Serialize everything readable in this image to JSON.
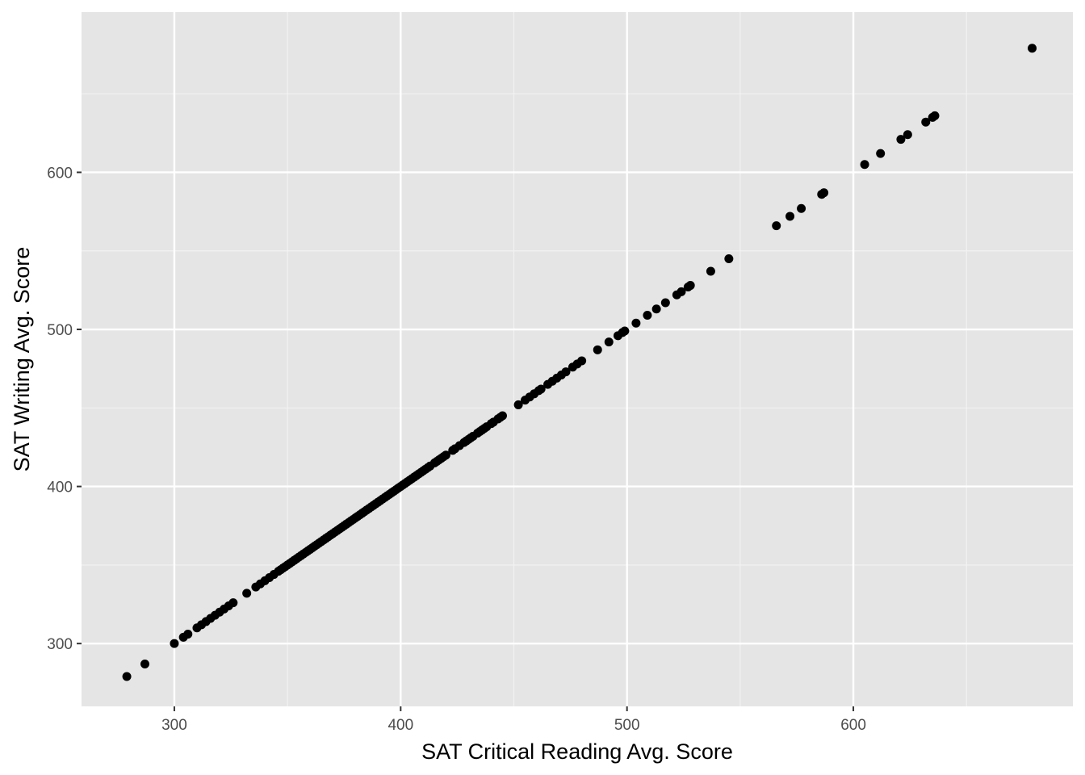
{
  "chart_data": {
    "type": "scatter",
    "title": "",
    "xlabel": "SAT Critical Reading Avg. Score",
    "ylabel": "SAT Writing Avg. Score",
    "xlim": [
      259,
      697
    ],
    "ylim": [
      260,
      702
    ],
    "x_ticks": [
      "300",
      "400",
      "500",
      "600"
    ],
    "y_ticks": [
      "300",
      "400",
      "500",
      "600"
    ],
    "grid": true,
    "legend": "none",
    "colors": {
      "panel_background": "#e5e5e5",
      "grid_major": "#ffffff",
      "grid_minor": "#f2f2f2",
      "point": "#000000",
      "tick_mark": "#333333"
    },
    "series": [
      {
        "points": [
          [
            279,
            279
          ],
          [
            287,
            287
          ],
          [
            300,
            300
          ],
          [
            304,
            304
          ],
          [
            306,
            306
          ],
          [
            310,
            310
          ],
          [
            312,
            312
          ],
          [
            314,
            314
          ],
          [
            316,
            316
          ],
          [
            318,
            318
          ],
          [
            320,
            320
          ],
          [
            322,
            322
          ],
          [
            324,
            324
          ],
          [
            326,
            326
          ],
          [
            332,
            332
          ],
          [
            336,
            336
          ],
          [
            338,
            338
          ],
          [
            340,
            340
          ],
          [
            342,
            342
          ],
          [
            344,
            344
          ],
          [
            346,
            346
          ],
          [
            347,
            347
          ],
          [
            348,
            348
          ],
          [
            349,
            349
          ],
          [
            350,
            350
          ],
          [
            351,
            351
          ],
          [
            352,
            352
          ],
          [
            353,
            353
          ],
          [
            354,
            354
          ],
          [
            355,
            355
          ],
          [
            356,
            356
          ],
          [
            357,
            357
          ],
          [
            358,
            358
          ],
          [
            359,
            359
          ],
          [
            360,
            360
          ],
          [
            361,
            361
          ],
          [
            362,
            362
          ],
          [
            363,
            363
          ],
          [
            364,
            364
          ],
          [
            365,
            365
          ],
          [
            366,
            366
          ],
          [
            367,
            367
          ],
          [
            368,
            368
          ],
          [
            369,
            369
          ],
          [
            370,
            370
          ],
          [
            371,
            371
          ],
          [
            372,
            372
          ],
          [
            373,
            373
          ],
          [
            374,
            374
          ],
          [
            375,
            375
          ],
          [
            376,
            376
          ],
          [
            377,
            377
          ],
          [
            378,
            378
          ],
          [
            379,
            379
          ],
          [
            380,
            380
          ],
          [
            381,
            381
          ],
          [
            382,
            382
          ],
          [
            383,
            383
          ],
          [
            384,
            384
          ],
          [
            385,
            385
          ],
          [
            386,
            386
          ],
          [
            387,
            387
          ],
          [
            388,
            388
          ],
          [
            389,
            389
          ],
          [
            390,
            390
          ],
          [
            391,
            391
          ],
          [
            392,
            392
          ],
          [
            393,
            393
          ],
          [
            394,
            394
          ],
          [
            395,
            395
          ],
          [
            396,
            396
          ],
          [
            397,
            397
          ],
          [
            398,
            398
          ],
          [
            399,
            399
          ],
          [
            400,
            400
          ],
          [
            401,
            401
          ],
          [
            402,
            402
          ],
          [
            403,
            403
          ],
          [
            404,
            404
          ],
          [
            405,
            405
          ],
          [
            406,
            406
          ],
          [
            407,
            407
          ],
          [
            408,
            408
          ],
          [
            409,
            409
          ],
          [
            410,
            410
          ],
          [
            411,
            411
          ],
          [
            412,
            412
          ],
          [
            413,
            413
          ],
          [
            415,
            415
          ],
          [
            416,
            416
          ],
          [
            417,
            417
          ],
          [
            418,
            418
          ],
          [
            419,
            419
          ],
          [
            420,
            420
          ],
          [
            423,
            423
          ],
          [
            424,
            424
          ],
          [
            426,
            426
          ],
          [
            428,
            428
          ],
          [
            429,
            429
          ],
          [
            430,
            430
          ],
          [
            431,
            431
          ],
          [
            432,
            432
          ],
          [
            434,
            434
          ],
          [
            435,
            435
          ],
          [
            436,
            436
          ],
          [
            437,
            437
          ],
          [
            438,
            438
          ],
          [
            440,
            440
          ],
          [
            441,
            441
          ],
          [
            443,
            443
          ],
          [
            444,
            444
          ],
          [
            445,
            445
          ],
          [
            452,
            452
          ],
          [
            455,
            455
          ],
          [
            457,
            457
          ],
          [
            459,
            459
          ],
          [
            461,
            461
          ],
          [
            462,
            462
          ],
          [
            465,
            465
          ],
          [
            467,
            467
          ],
          [
            469,
            469
          ],
          [
            471,
            471
          ],
          [
            473,
            473
          ],
          [
            476,
            476
          ],
          [
            478,
            478
          ],
          [
            480,
            480
          ],
          [
            487,
            487
          ],
          [
            492,
            492
          ],
          [
            496,
            496
          ],
          [
            498,
            498
          ],
          [
            499,
            499
          ],
          [
            504,
            504
          ],
          [
            509,
            509
          ],
          [
            513,
            513
          ],
          [
            517,
            517
          ],
          [
            522,
            522
          ],
          [
            524,
            524
          ],
          [
            527,
            527
          ],
          [
            528,
            528
          ],
          [
            537,
            537
          ],
          [
            545,
            545
          ],
          [
            566,
            566
          ],
          [
            572,
            572
          ],
          [
            577,
            577
          ],
          [
            586,
            586
          ],
          [
            587,
            587
          ],
          [
            605,
            605
          ],
          [
            612,
            612
          ],
          [
            621,
            621
          ],
          [
            624,
            624
          ],
          [
            632,
            632
          ],
          [
            635,
            635
          ],
          [
            636,
            636
          ],
          [
            679,
            679
          ]
        ]
      }
    ]
  }
}
